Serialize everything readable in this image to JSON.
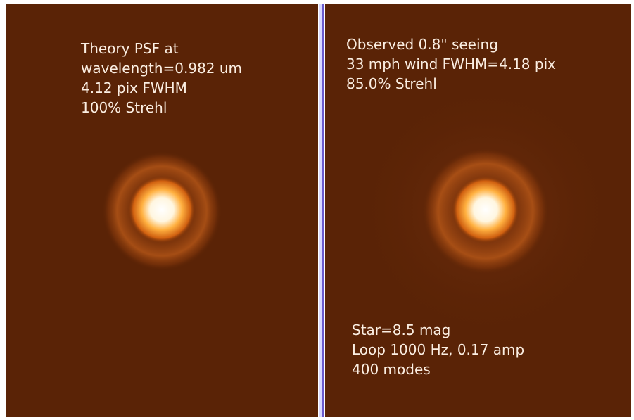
{
  "panels": [
    {
      "lines": [
        "Theory PSF at",
        "wavelength=0.982 um",
        "4.12 pix FWHM",
        "100% Strehl"
      ]
    },
    {
      "lines": [
        "Observed 0.8\" seeing",
        "33 mph wind FWHM=4.18 pix",
        "85.0% Strehl"
      ],
      "footer": [
        "Star=8.5 mag",
        "Loop 1000 Hz, 0.17 amp",
        "400 modes"
      ]
    }
  ]
}
